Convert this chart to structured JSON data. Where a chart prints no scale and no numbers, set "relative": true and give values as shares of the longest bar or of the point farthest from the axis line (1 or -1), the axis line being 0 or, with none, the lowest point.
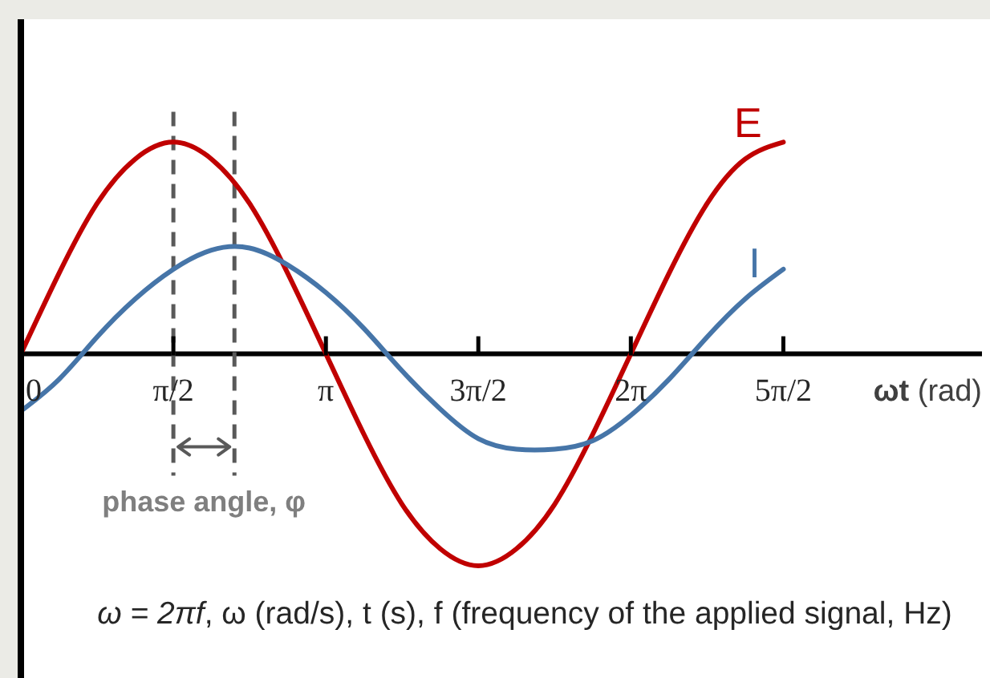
{
  "chart_data": {
    "type": "line",
    "relative": true,
    "x": [
      0,
      0.393,
      0.785,
      1.178,
      1.571,
      1.963,
      2.356,
      2.749,
      3.142,
      3.534,
      3.927,
      4.32,
      4.712,
      5.105,
      5.498,
      5.89,
      6.283,
      6.676,
      7.069,
      7.461,
      7.854
    ],
    "series": [
      {
        "name": "E",
        "color": "#c00000",
        "values": [
          0,
          0.38,
          0.71,
          0.92,
          1,
          0.92,
          0.71,
          0.38,
          0,
          -0.38,
          -0.71,
          -0.92,
          -1,
          -0.92,
          -0.71,
          -0.38,
          0,
          0.38,
          0.71,
          0.92,
          1
        ]
      },
      {
        "name": "I",
        "color": "#4675a8",
        "values": [
          -0.27,
          -0.12,
          0.08,
          0.26,
          0.4,
          0.49,
          0.5,
          0.42,
          0.29,
          0.12,
          -0.08,
          -0.26,
          -0.4,
          -0.45,
          -0.45,
          -0.41,
          -0.29,
          -0.12,
          0.08,
          0.26,
          0.4
        ]
      }
    ],
    "xlabel": "ωt (rad)",
    "xlim": [
      0,
      9.9
    ],
    "xticks": [
      0,
      {
        "value": 1.571,
        "label": "π/2"
      },
      {
        "value": 3.142,
        "label": "π"
      },
      {
        "value": 4.712,
        "label": "3π/2"
      },
      {
        "value": 6.283,
        "label": "2π"
      },
      {
        "value": 7.854,
        "label": "5π/2"
      }
    ],
    "ref_lines": [
      {
        "axis": "x",
        "value": 1.571,
        "color": "#595959",
        "line_style": "dashed"
      },
      {
        "axis": "x",
        "value": 2.2,
        "color": "#595959",
        "line_style": "dashed"
      }
    ],
    "annotations": [
      "phase angle, φ",
      "ω = 2πf, ω (rad/s), t (s), f (frequency of the applied signal, Hz)"
    ]
  }
}
